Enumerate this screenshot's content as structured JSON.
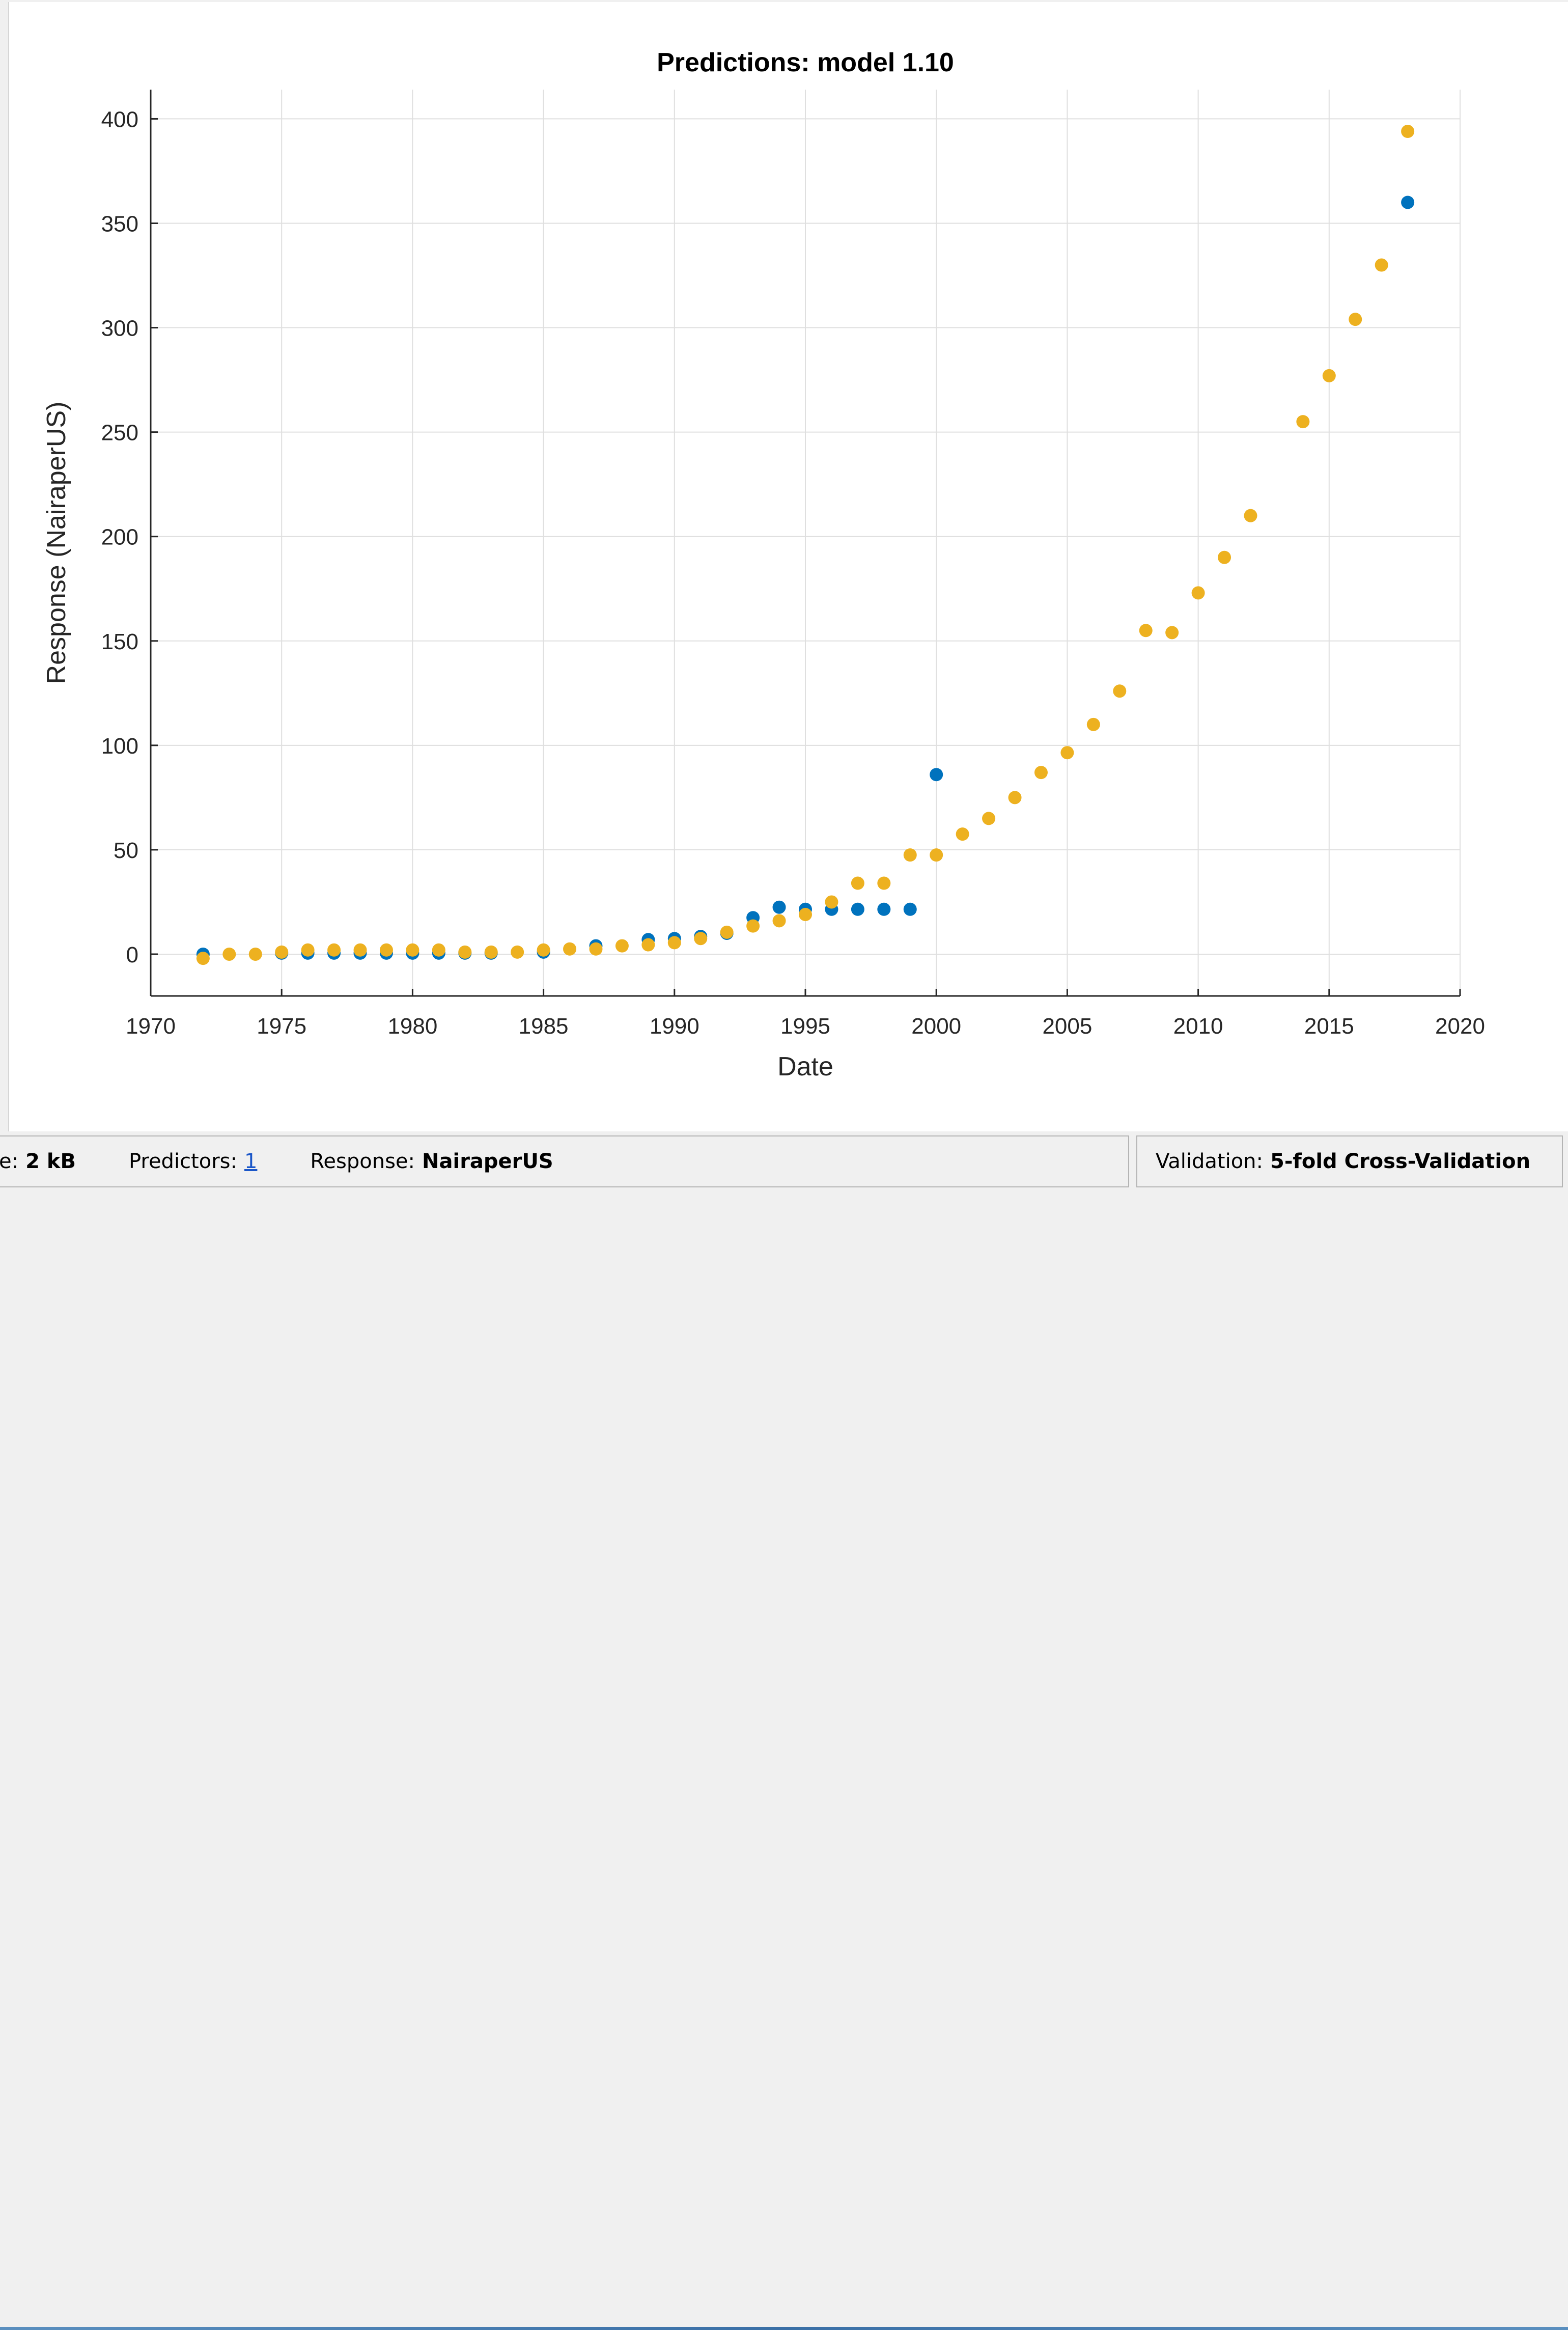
{
  "chart_data": {
    "type": "scatter",
    "title": "Predictions: model 1.10",
    "xlabel": "Date",
    "ylabel": "Response (NairaperUS)",
    "xlim": [
      1970,
      2020
    ],
    "ylim": [
      -20,
      414
    ],
    "xticks": [
      1970,
      1975,
      1980,
      1985,
      1990,
      1995,
      2000,
      2005,
      2010,
      2015,
      2020
    ],
    "yticks": [
      0,
      50,
      100,
      150,
      200,
      250,
      300,
      350,
      400
    ],
    "grid": true,
    "legend": "none",
    "series": [
      {
        "color": "#0072bd",
        "points": [
          [
            1972,
            0
          ],
          [
            1975,
            0.5
          ],
          [
            1976,
            0.5
          ],
          [
            1977,
            0.5
          ],
          [
            1978,
            0.5
          ],
          [
            1979,
            0.5
          ],
          [
            1980,
            0.5
          ],
          [
            1981,
            0.5
          ],
          [
            1982,
            0.5
          ],
          [
            1983,
            0.5
          ],
          [
            1985,
            1
          ],
          [
            1987,
            4
          ],
          [
            1989,
            7
          ],
          [
            1990,
            7.5
          ],
          [
            1991,
            8.5
          ],
          [
            1992,
            10
          ],
          [
            1993,
            17.5
          ],
          [
            1994,
            22.5
          ],
          [
            1995,
            21.5
          ],
          [
            1996,
            21.5
          ],
          [
            1997,
            21.5
          ],
          [
            1998,
            21.5
          ],
          [
            1999,
            21.5
          ],
          [
            2000,
            86
          ],
          [
            2018,
            360
          ]
        ]
      },
      {
        "color": "#edb120",
        "points": [
          [
            1972,
            -2
          ],
          [
            1973,
            0
          ],
          [
            1974,
            0
          ],
          [
            1975,
            1
          ],
          [
            1976,
            2
          ],
          [
            1977,
            2
          ],
          [
            1978,
            2
          ],
          [
            1979,
            2
          ],
          [
            1980,
            2
          ],
          [
            1981,
            2
          ],
          [
            1982,
            1
          ],
          [
            1983,
            1
          ],
          [
            1984,
            1
          ],
          [
            1985,
            2
          ],
          [
            1986,
            2.5
          ],
          [
            1987,
            2.5
          ],
          [
            1988,
            4
          ],
          [
            1989,
            4.5
          ],
          [
            1990,
            5.5
          ],
          [
            1991,
            7.5
          ],
          [
            1992,
            10.5
          ],
          [
            1993,
            13.5
          ],
          [
            1994,
            16
          ],
          [
            1995,
            19
          ],
          [
            1996,
            25
          ],
          [
            1997,
            34
          ],
          [
            1998,
            34
          ],
          [
            1999,
            47.5
          ],
          [
            2000,
            47.5
          ],
          [
            2001,
            57.5
          ],
          [
            2002,
            65
          ],
          [
            2003,
            75
          ],
          [
            2004,
            87
          ],
          [
            2005,
            96.5
          ],
          [
            2006,
            110
          ],
          [
            2007,
            126
          ],
          [
            2008,
            155
          ],
          [
            2009,
            154
          ],
          [
            2010,
            173
          ],
          [
            2011,
            190
          ],
          [
            2012,
            210
          ],
          [
            2014,
            255
          ],
          [
            2015,
            277
          ],
          [
            2016,
            304
          ],
          [
            2017,
            330
          ],
          [
            2018,
            394
          ]
        ]
      }
    ]
  },
  "status_bar": {
    "size_label": "e:",
    "size_value": "2 kB",
    "predictors_label": "Predictors:",
    "predictors_value": "1",
    "response_label": "Response:",
    "response_value": "NairaperUS",
    "validation_label": "Validation:",
    "validation_value": "5-fold Cross-Validation"
  }
}
